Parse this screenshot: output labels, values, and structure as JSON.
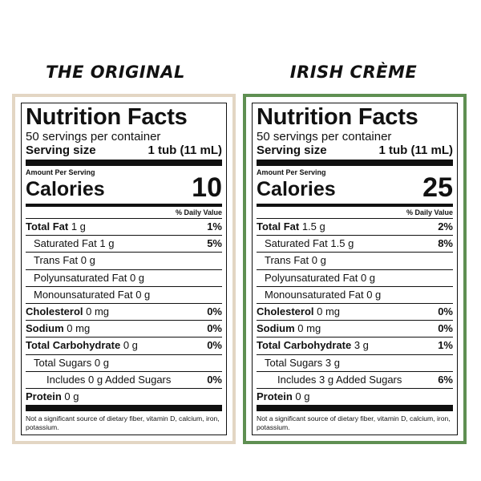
{
  "panels": [
    {
      "heading": "THE ORIGINAL",
      "border_color": "#e3d6c3",
      "label": {
        "title": "Nutrition Facts",
        "servings_per_container": "50 servings per container",
        "serving_size_label": "Serving size",
        "serving_size_value": "1 tub (11 mL)",
        "amount_per_serving": "Amount Per Serving",
        "calories_label": "Calories",
        "calories_value": "10",
        "daily_value_header": "% Daily Value",
        "total_fat": {
          "name": "Total Fat",
          "amount": "1 g",
          "dv": "1%"
        },
        "saturated_fat": {
          "label": "Saturated Fat 1 g",
          "dv": "5%"
        },
        "trans_fat": "Trans Fat 0 g",
        "polyunsaturated_fat": "Polyunsaturated Fat 0 g",
        "monounsaturated_fat": "Monounsaturated Fat 0 g",
        "cholesterol": {
          "name": "Cholesterol",
          "amount": "0 mg",
          "dv": "0%"
        },
        "sodium": {
          "name": "Sodium",
          "amount": "0 mg",
          "dv": "0%"
        },
        "total_carbohydrate": {
          "name": "Total Carbohydrate",
          "amount": "0 g",
          "dv": "0%"
        },
        "total_sugars": "Total Sugars 0 g",
        "added_sugars": {
          "label": "Includes 0 g Added Sugars",
          "dv": "0%"
        },
        "protein": {
          "name": "Protein",
          "amount": "0 g"
        },
        "footnote": "Not a significant source of dietary fiber, vitamin D, calcium, iron, potassium."
      }
    },
    {
      "heading": "IRISH CRÈME",
      "border_color": "#5f8f52",
      "label": {
        "title": "Nutrition Facts",
        "servings_per_container": "50 servings per container",
        "serving_size_label": "Serving size",
        "serving_size_value": "1 tub (11 mL)",
        "amount_per_serving": "Amount Per Serving",
        "calories_label": "Calories",
        "calories_value": "25",
        "daily_value_header": "% Daily Value",
        "total_fat": {
          "name": "Total Fat",
          "amount": "1.5 g",
          "dv": "2%"
        },
        "saturated_fat": {
          "label": "Saturated Fat 1.5 g",
          "dv": "8%"
        },
        "trans_fat": "Trans Fat 0 g",
        "polyunsaturated_fat": "Polyunsaturated Fat 0 g",
        "monounsaturated_fat": "Monounsaturated Fat 0 g",
        "cholesterol": {
          "name": "Cholesterol",
          "amount": "0 mg",
          "dv": "0%"
        },
        "sodium": {
          "name": "Sodium",
          "amount": "0 mg",
          "dv": "0%"
        },
        "total_carbohydrate": {
          "name": "Total Carbohydrate",
          "amount": "3 g",
          "dv": "1%"
        },
        "total_sugars": "Total Sugars 3 g",
        "added_sugars": {
          "label": "Includes 3 g Added Sugars",
          "dv": "6%"
        },
        "protein": {
          "name": "Protein",
          "amount": "0 g"
        },
        "footnote": "Not a significant source of dietary fiber, vitamin D, calcium, iron, potassium."
      }
    }
  ]
}
